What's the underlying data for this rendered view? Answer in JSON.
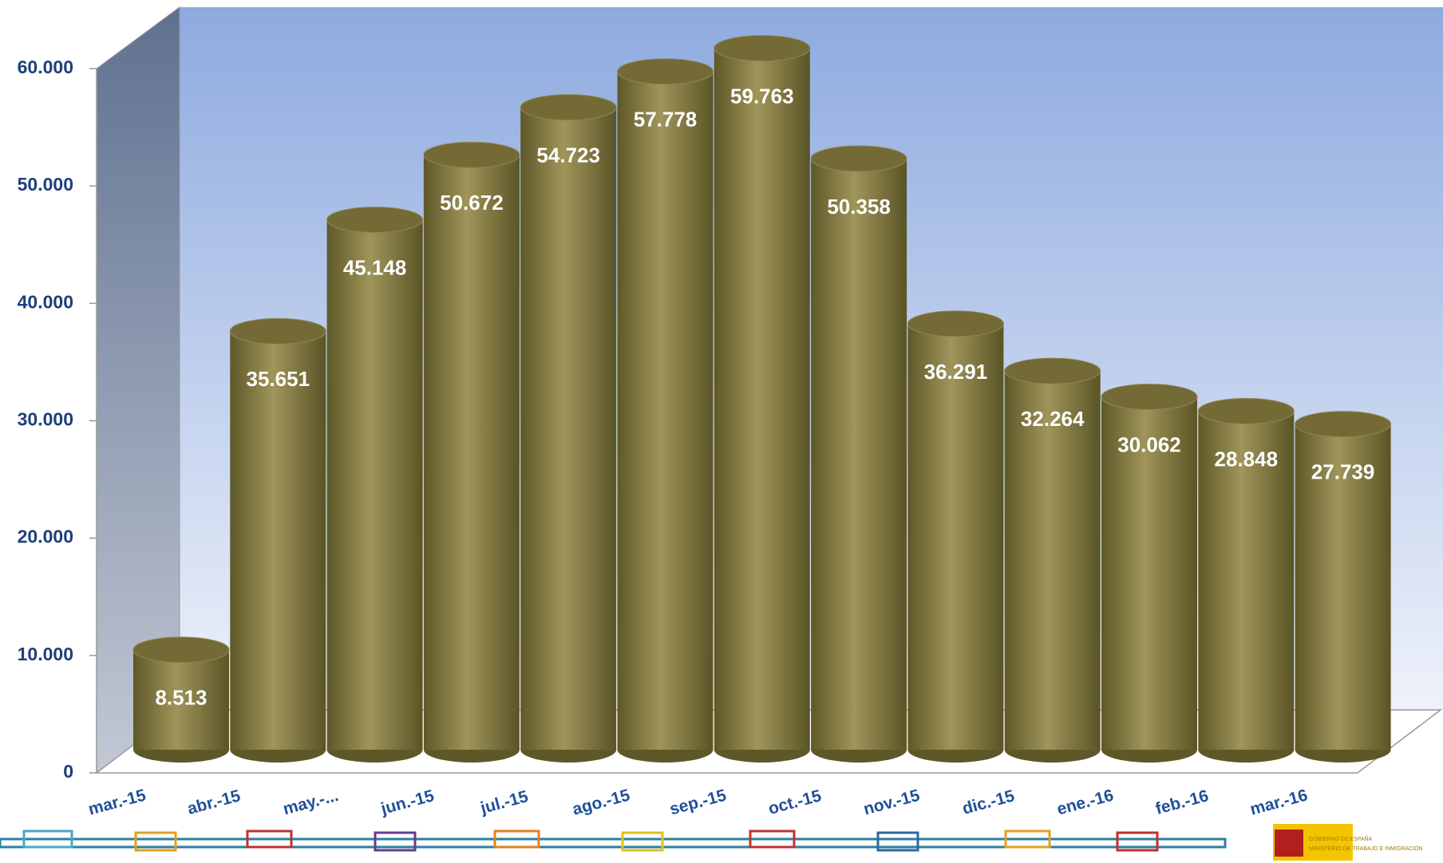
{
  "chart_data": {
    "type": "bar",
    "categories": [
      "mar.-15",
      "abr.-15",
      "may.-...",
      "jun.-15",
      "jul.-15",
      "ago.-15",
      "sep.-15",
      "oct.-15",
      "nov.-15",
      "dic.-15",
      "ene.-16",
      "feb.-16",
      "mar.-16"
    ],
    "values": [
      8513,
      35651,
      45148,
      50672,
      54723,
      57778,
      59763,
      50358,
      36291,
      32264,
      30062,
      28848,
      27739
    ],
    "value_labels": [
      "8.513",
      "35.651",
      "45.148",
      "50.672",
      "54.723",
      "57.778",
      "59.763",
      "50.358",
      "36.291",
      "32.264",
      "30.062",
      "28.848",
      "27.739"
    ],
    "color": "#8a8040",
    "ylim": [
      0,
      60000
    ],
    "yticks": [
      {
        "value": 0,
        "label": "0"
      },
      {
        "value": 10000,
        "label": "10.000"
      },
      {
        "value": 20000,
        "label": "20.000"
      },
      {
        "value": 30000,
        "label": "30.000"
      },
      {
        "value": 40000,
        "label": "40.000"
      },
      {
        "value": 50000,
        "label": "50.000"
      },
      {
        "value": 60000,
        "label": "60.000"
      }
    ],
    "grid": false
  },
  "footer": {
    "logo": [
      "GOBIERNO DE ESPAÑA",
      "MINISTERIO DE TRABAJO E INMIGRACIÓN"
    ]
  }
}
